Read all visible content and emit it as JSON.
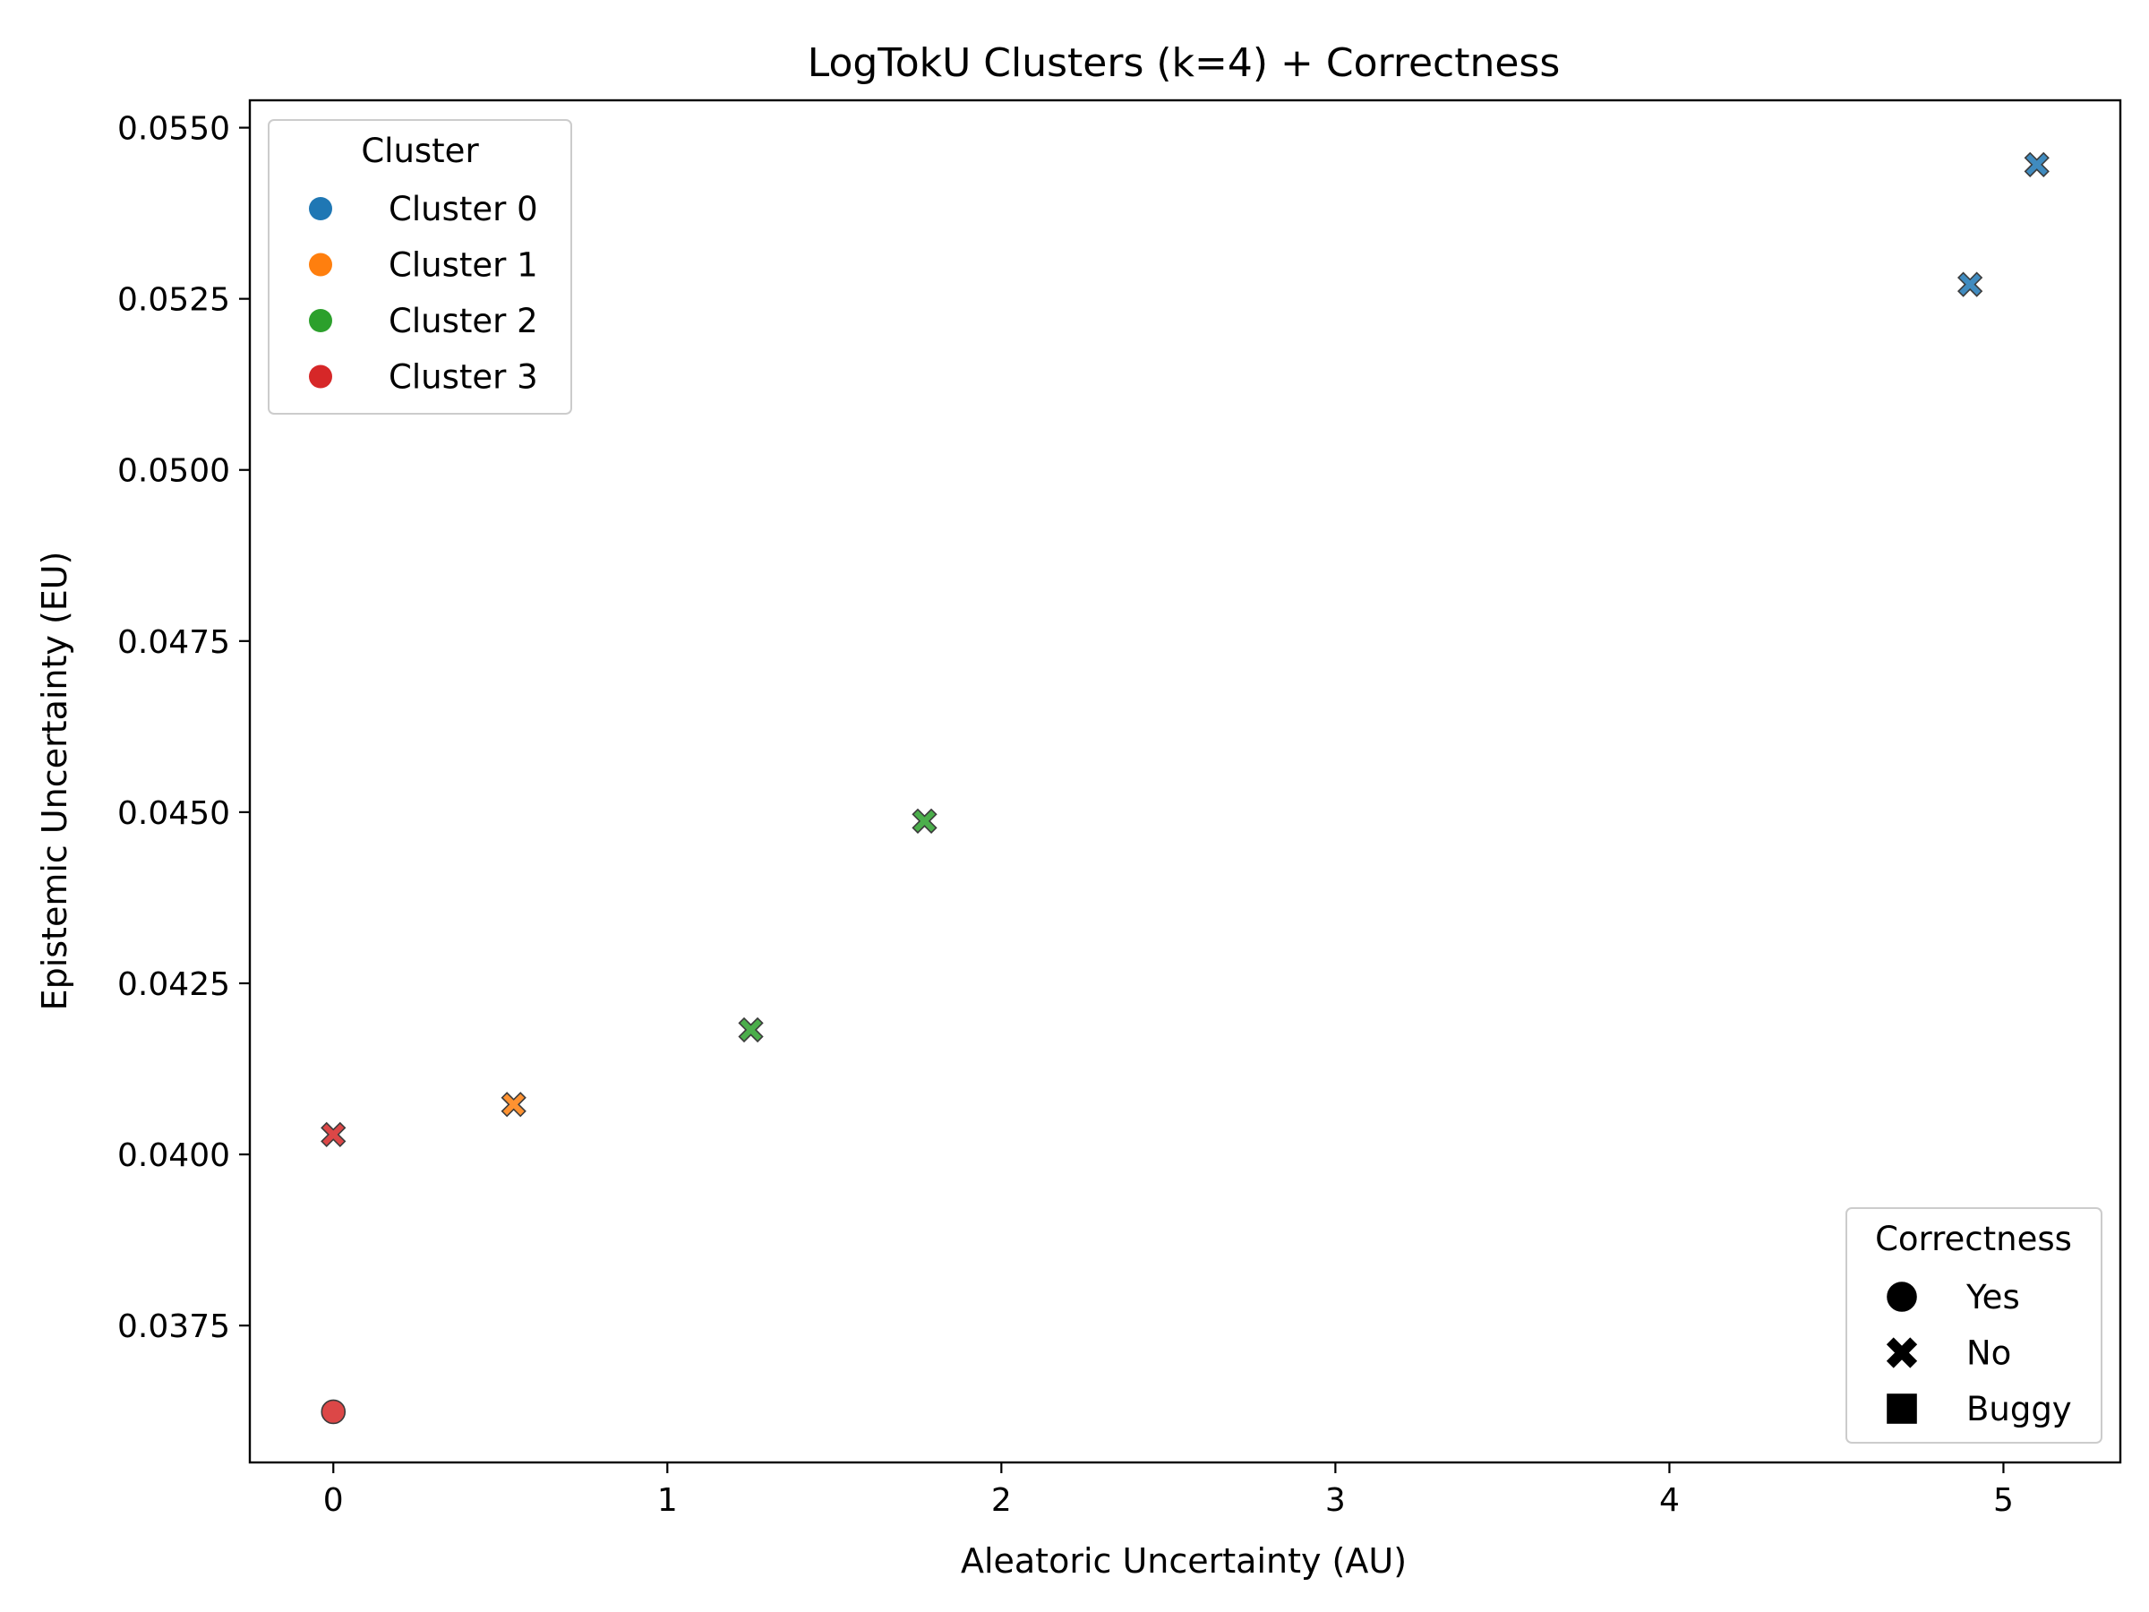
{
  "chart_data": {
    "type": "scatter",
    "title": "LogTokU Clusters (k=4) + Correctness",
    "xlabel": "Aleatoric Uncertainty (AU)",
    "ylabel": "Epistemic Uncertainty (EU)",
    "xlim": [
      -0.25,
      5.35
    ],
    "ylim": [
      0.0355,
      0.0554
    ],
    "x_ticks": [
      {
        "value": 0,
        "label": "0"
      },
      {
        "value": 1,
        "label": "1"
      },
      {
        "value": 2,
        "label": "2"
      },
      {
        "value": 3,
        "label": "3"
      },
      {
        "value": 4,
        "label": "4"
      },
      {
        "value": 5,
        "label": "5"
      }
    ],
    "y_ticks": [
      {
        "value": 0.0375,
        "label": "0.0375"
      },
      {
        "value": 0.04,
        "label": "0.0400"
      },
      {
        "value": 0.0425,
        "label": "0.0425"
      },
      {
        "value": 0.045,
        "label": "0.0450"
      },
      {
        "value": 0.0475,
        "label": "0.0475"
      },
      {
        "value": 0.05,
        "label": "0.0500"
      },
      {
        "value": 0.0525,
        "label": "0.0525"
      },
      {
        "value": 0.055,
        "label": "0.0550"
      }
    ],
    "grid": false,
    "clusters": [
      {
        "name": "Cluster 0",
        "color": "#1f77b4"
      },
      {
        "name": "Cluster 1",
        "color": "#ff7f0e"
      },
      {
        "name": "Cluster 2",
        "color": "#2ca02c"
      },
      {
        "name": "Cluster 3",
        "color": "#d62728"
      }
    ],
    "correctness": [
      {
        "name": "Yes",
        "marker": "circle"
      },
      {
        "name": "No",
        "marker": "x"
      },
      {
        "name": "Buggy",
        "marker": "square"
      }
    ],
    "points": [
      {
        "x": 5.1,
        "y": 0.05446,
        "cluster": 0,
        "correctness": "No"
      },
      {
        "x": 4.9,
        "y": 0.05271,
        "cluster": 0,
        "correctness": "No"
      },
      {
        "x": 1.77,
        "y": 0.04487,
        "cluster": 2,
        "correctness": "No"
      },
      {
        "x": 1.25,
        "y": 0.04182,
        "cluster": 2,
        "correctness": "No"
      },
      {
        "x": 0.54,
        "y": 0.04073,
        "cluster": 1,
        "correctness": "No"
      },
      {
        "x": 0.0,
        "y": 0.04029,
        "cluster": 3,
        "correctness": "No"
      },
      {
        "x": 0.0,
        "y": 0.03624,
        "cluster": 3,
        "correctness": "Yes"
      }
    ],
    "legends": [
      {
        "title": "Cluster",
        "placement": "upper-left"
      },
      {
        "title": "Correctness",
        "placement": "lower-right"
      }
    ]
  }
}
